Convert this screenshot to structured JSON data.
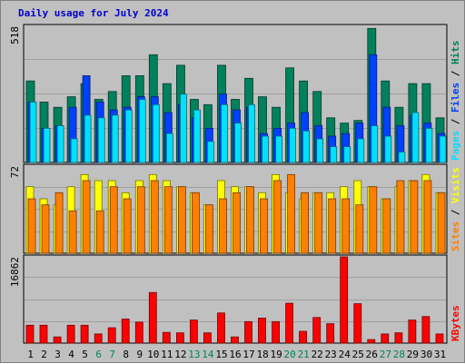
{
  "title": "Daily usage for July 2024",
  "chart_data": {
    "type": "bar",
    "categories": [
      "1",
      "2",
      "3",
      "4",
      "5",
      "6",
      "7",
      "8",
      "9",
      "10",
      "11",
      "12",
      "13",
      "14",
      "15",
      "16",
      "17",
      "18",
      "19",
      "20",
      "21",
      "22",
      "23",
      "24",
      "25",
      "26",
      "27",
      "28",
      "29",
      "30",
      "31"
    ],
    "weekend_days": [
      6,
      7,
      13,
      14,
      20,
      21,
      27,
      28
    ],
    "panels": [
      {
        "id": "hits_files_pages",
        "ymax": 518,
        "ymax_label": "518",
        "legend": [
          "Pages",
          "Files",
          "Hits"
        ],
        "legend_colors": [
          "#00e0ff",
          "#0040ff",
          "#00805c"
        ],
        "series": [
          {
            "name": "Hits",
            "color": "#00805c",
            "values": [
              310,
              230,
              210,
              250,
              300,
              240,
              270,
              330,
              330,
              410,
              300,
              370,
              240,
              220,
              370,
              240,
              320,
              250,
              210,
              360,
              310,
              270,
              170,
              150,
              160,
              510,
              310,
              210,
              300,
              300,
              170
            ]
          },
          {
            "name": "Files",
            "color": "#0040ff",
            "values": [
              230,
              130,
              140,
              210,
              330,
              230,
              200,
              210,
              250,
              250,
              190,
              220,
              170,
              130,
              260,
              200,
              210,
              110,
              130,
              150,
              190,
              140,
              100,
              110,
              150,
              410,
              210,
              140,
              180,
              150,
              110
            ]
          },
          {
            "name": "Pages",
            "color": "#00e0ff",
            "values": [
              230,
              130,
              140,
              90,
              180,
              170,
              180,
              200,
              240,
              220,
              110,
              260,
              200,
              80,
              220,
              150,
              220,
              100,
              100,
              130,
              120,
              90,
              60,
              60,
              90,
              140,
              100,
              40,
              190,
              130,
              100
            ]
          }
        ]
      },
      {
        "id": "visits_sites",
        "ymax": 72,
        "ymax_label": "72",
        "legend": [
          "Sites",
          "Visits"
        ],
        "legend_colors": [
          "#ff8000",
          "#ffff00"
        ],
        "series": [
          {
            "name": "Visits",
            "color": "#ffff00",
            "values": [
              55,
              45,
              40,
              55,
              65,
              60,
              60,
              50,
              60,
              65,
              60,
              55,
              50,
              40,
              60,
              55,
              55,
              50,
              65,
              50,
              45,
              50,
              50,
              55,
              60,
              55,
              45,
              55,
              60,
              65,
              50
            ]
          },
          {
            "name": "Sites",
            "color": "#ff8000",
            "values": [
              45,
              40,
              50,
              35,
              60,
              35,
              55,
              45,
              55,
              60,
              55,
              55,
              50,
              40,
              45,
              50,
              55,
              45,
              60,
              65,
              50,
              50,
              45,
              45,
              40,
              55,
              45,
              60,
              60,
              60,
              50
            ]
          }
        ]
      },
      {
        "id": "kbytes",
        "ymax": 16862,
        "ymax_label": "16862",
        "legend": [
          "KBytes"
        ],
        "legend_colors": [
          "#ff0000"
        ],
        "series": [
          {
            "name": "KBytes",
            "color": "#ff0000",
            "values": [
              3500,
              3500,
              1200,
              3500,
              3500,
              1800,
              3000,
              4700,
              4100,
              9900,
              2100,
              2000,
              4500,
              2000,
              5900,
              1200,
              4200,
              4900,
              4200,
              7800,
              2300,
              5000,
              3800,
              16862,
              7700,
              700,
              1800,
              2000,
              4500,
              5200,
              1800
            ]
          }
        ]
      }
    ]
  }
}
